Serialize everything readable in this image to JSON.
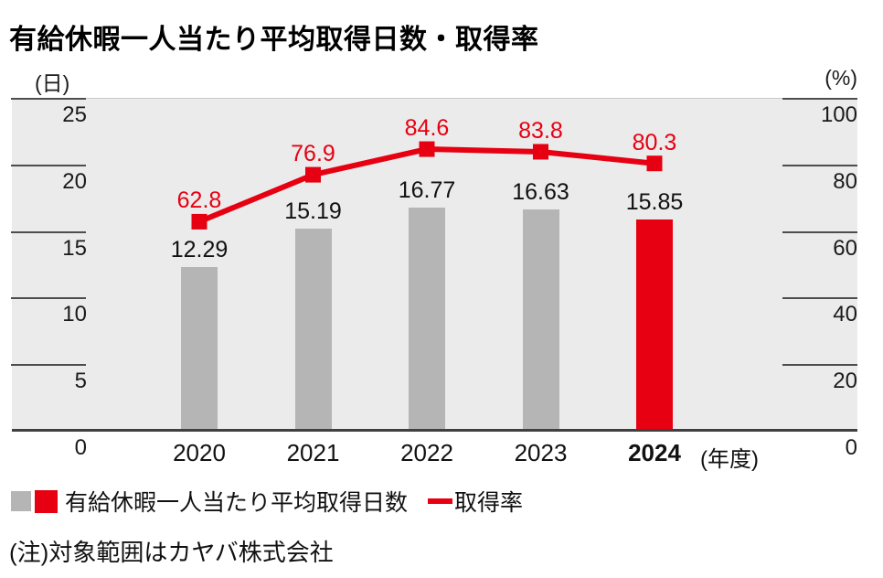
{
  "title": "有給休暇一人当たり平均取得日数・取得率",
  "note": "(注)対象範囲はカヤバ株式会社",
  "colors": {
    "bar_gray": "#b5b5b5",
    "accent_red": "#e60012",
    "plot_bg": "#ebebeb",
    "axis_dark": "#404040",
    "text_black": "#111111"
  },
  "chart_data": {
    "type": "bar+line",
    "categories": [
      "2020",
      "2021",
      "2022",
      "2023",
      "2024"
    ],
    "series": [
      {
        "name": "有給休暇一人当たり平均取得日数",
        "type": "bar",
        "axis": "left",
        "values": [
          12.29,
          15.19,
          16.77,
          16.63,
          15.85
        ]
      },
      {
        "name": "取得率",
        "type": "line",
        "axis": "right",
        "values": [
          62.8,
          76.9,
          84.6,
          83.8,
          80.3
        ]
      }
    ],
    "left_axis": {
      "unit": "(日)",
      "ticks": [
        0,
        5,
        10,
        15,
        20,
        25
      ],
      "min": 0,
      "max": 25
    },
    "right_axis": {
      "unit": "(%)",
      "ticks": [
        0,
        20,
        40,
        60,
        80,
        100
      ],
      "min": 0,
      "max": 100
    },
    "x_axis_suffix": "(年度)",
    "highlight_category": "2024",
    "grid": "tick-dashes-left-right",
    "legend_position": "bottom-left"
  }
}
